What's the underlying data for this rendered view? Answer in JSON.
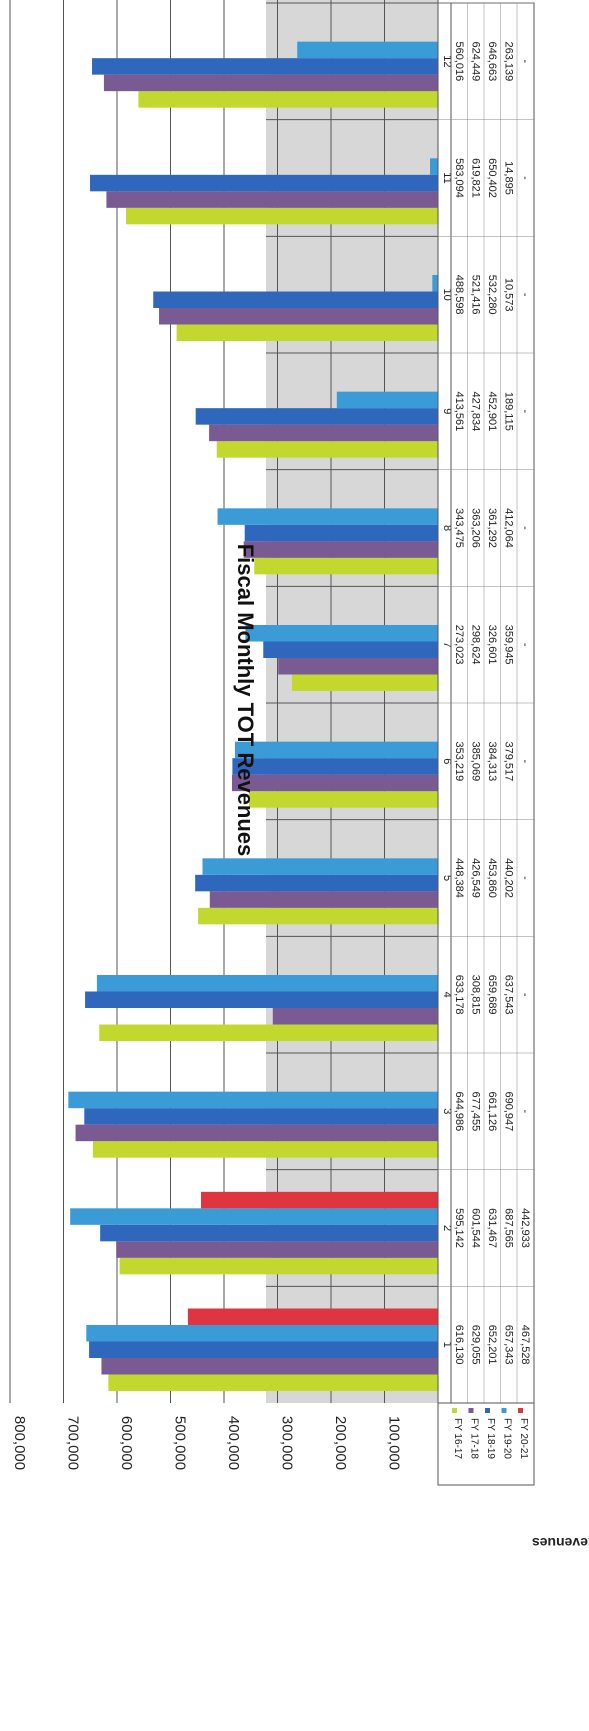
{
  "chart_data": {
    "type": "bar",
    "orientation": "horizontal-bars, page rotated 90 degrees clockwise",
    "title": "Fiscal Monthly TOT Revenues",
    "ylabel": "Revenues",
    "xlabel": "",
    "ylim": [
      0,
      800000
    ],
    "grid": true,
    "legend": "data-table-left",
    "yticks": [
      "-",
      "100,000",
      "200,000",
      "300,000",
      "400,000",
      "500,000",
      "600,000",
      "700,000",
      "800,000"
    ],
    "categories": [
      "1",
      "2",
      "3",
      "4",
      "5",
      "6",
      "7",
      "8",
      "9",
      "10",
      "11",
      "12"
    ],
    "series": [
      {
        "name": "FY 16-17",
        "color": "#c2d82e",
        "values": [
          616130,
          595142,
          644986,
          633178,
          448384,
          353219,
          273023,
          343475,
          413561,
          488598,
          583094,
          560016
        ],
        "labels": [
          "616,130",
          "595,142",
          "644,986",
          "633,178",
          "448,384",
          "353,219",
          "273,023",
          "343,475",
          "413,561",
          "488,598",
          "583,094",
          "560,016"
        ]
      },
      {
        "name": "FY 17-18",
        "color": "#7a5a92",
        "values": [
          629055,
          601544,
          677455,
          308815,
          426549,
          385069,
          298624,
          363206,
          427834,
          521416,
          619821,
          624449
        ],
        "labels": [
          "629,055",
          "601,544",
          "677,455",
          "308,815",
          "426,549",
          "385,069",
          "298,624",
          "363,206",
          "427,834",
          "521,416",
          "619,821",
          "624,449"
        ]
      },
      {
        "name": "FY 18-19",
        "color": "#2f67bd",
        "values": [
          652201,
          631467,
          661126,
          659689,
          453860,
          384313,
          326601,
          361292,
          452901,
          532280,
          650402,
          646663
        ],
        "labels": [
          "652,201",
          "631,467",
          "661,126",
          "659,689",
          "453,860",
          "384,313",
          "326,601",
          "361,292",
          "452,901",
          "532,280",
          "650,402",
          "646,663"
        ]
      },
      {
        "name": "FY 19-20",
        "color": "#3a9bd6",
        "values": [
          657343,
          687565,
          690947,
          637543,
          440202,
          379517,
          359945,
          412064,
          189115,
          10573,
          14895,
          263139
        ],
        "labels": [
          "657,343",
          "687,565",
          "690,947",
          "637,543",
          "440,202",
          "379,517",
          "359,945",
          "412,064",
          "189,115",
          "10,573",
          "14,895",
          "263,139"
        ]
      },
      {
        "name": "FY 20-21",
        "color": "#de3540",
        "values": [
          467528,
          442933,
          null,
          null,
          null,
          null,
          null,
          null,
          null,
          null,
          null,
          null
        ],
        "labels": [
          "467,528",
          "442,933",
          "-",
          "-",
          "-",
          "-",
          "-",
          "-",
          "-",
          "-",
          "-",
          "-"
        ]
      }
    ]
  }
}
